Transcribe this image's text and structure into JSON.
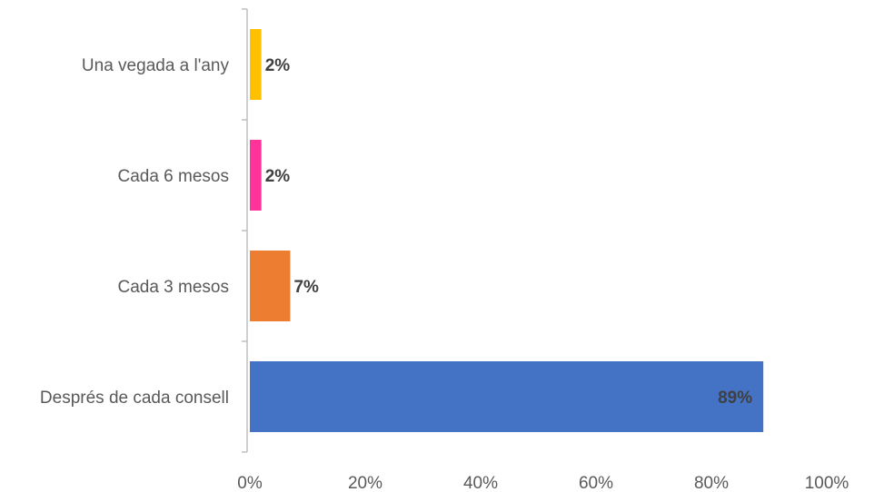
{
  "chart_data": {
    "type": "bar",
    "orientation": "horizontal",
    "categories": [
      "Una vegada a l'any",
      "Cada 6 mesos",
      "Cada 3 mesos",
      "Després de cada consell"
    ],
    "values": [
      2,
      2,
      7,
      89
    ],
    "data_labels": [
      "2%",
      "2%",
      "7%",
      "89%"
    ],
    "colors": [
      "#FFC000",
      "#FF3399",
      "#ED7D31",
      "#4472C4"
    ],
    "xlim": [
      0,
      100
    ],
    "x_ticks": [
      0,
      20,
      40,
      60,
      80,
      100
    ],
    "x_tick_labels": [
      "0%",
      "20%",
      "40%",
      "60%",
      "80%",
      "100%"
    ],
    "grid": false,
    "legend": "none"
  }
}
